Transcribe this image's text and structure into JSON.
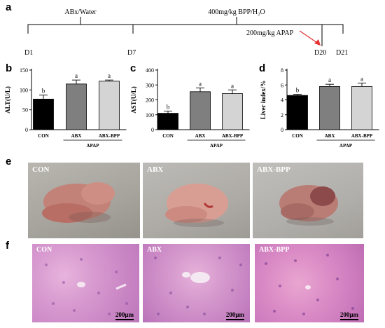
{
  "panel_letters": {
    "a": "a",
    "b": "b",
    "c": "c",
    "d": "d",
    "e": "e",
    "f": "f"
  },
  "timeline": {
    "abx_label": "ABx/Water",
    "bpp_label": "400mg/kg BPP/H₂O",
    "apap_label": "200mg/kg APAP",
    "days": [
      "D1",
      "D7",
      "D20",
      "D21"
    ]
  },
  "chart_data": [
    {
      "type": "bar",
      "ylabel": "ALT(U/L)",
      "categories": [
        "CON",
        "ABX",
        "ABX-BPP"
      ],
      "group_label": "APAP",
      "values": [
        77,
        115,
        122
      ],
      "errors": [
        10,
        10,
        3
      ],
      "sig": [
        "b",
        "a",
        "a"
      ],
      "colors": [
        "#000000",
        "#7f7f7f",
        "#d4d4d4"
      ],
      "ylim": [
        0,
        150
      ],
      "yticks": [
        0,
        50,
        100,
        150
      ]
    },
    {
      "type": "bar",
      "ylabel": "AST(U/L)",
      "categories": [
        "CON",
        "ABX",
        "ABX-BPP"
      ],
      "group_label": "APAP",
      "values": [
        110,
        255,
        242
      ],
      "errors": [
        15,
        25,
        25
      ],
      "sig": [
        "b",
        "a",
        "a"
      ],
      "colors": [
        "#000000",
        "#7f7f7f",
        "#d4d4d4"
      ],
      "ylim": [
        0,
        400
      ],
      "yticks": [
        0,
        100,
        200,
        300,
        400
      ]
    },
    {
      "type": "bar",
      "ylabel": "Liver index/%",
      "categories": [
        "CON",
        "ABX",
        "ABX-BPP"
      ],
      "group_label": "APAP",
      "values": [
        4.6,
        5.8,
        5.8
      ],
      "errors": [
        0.15,
        0.3,
        0.45
      ],
      "sig": [
        "b",
        "a",
        "a"
      ],
      "colors": [
        "#000000",
        "#7f7f7f",
        "#d4d4d4"
      ],
      "ylim": [
        0,
        8
      ],
      "yticks": [
        0,
        2,
        4,
        6,
        8
      ]
    }
  ],
  "photos": [
    {
      "label": "CON"
    },
    {
      "label": "ABX"
    },
    {
      "label": "ABX-BPP"
    }
  ],
  "histology": [
    {
      "label": "CON",
      "scale": "200μm"
    },
    {
      "label": "ABX",
      "scale": "200μm"
    },
    {
      "label": "ABX-BPP",
      "scale": "200μm"
    }
  ]
}
